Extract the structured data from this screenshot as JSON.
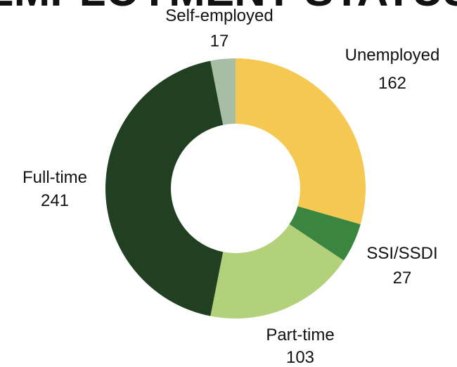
{
  "chart_data": {
    "type": "donut",
    "title": "EMPLOYMENT STATUS",
    "categories": [
      "Unemployed",
      "SSI/SSDI",
      "Part-time",
      "Full-time",
      "Self-employed"
    ],
    "values": [
      162,
      27,
      103,
      241,
      17
    ],
    "colors": [
      "#f5c951",
      "#3a8540",
      "#b3d07a",
      "#213f21",
      "#a7bda5"
    ]
  }
}
